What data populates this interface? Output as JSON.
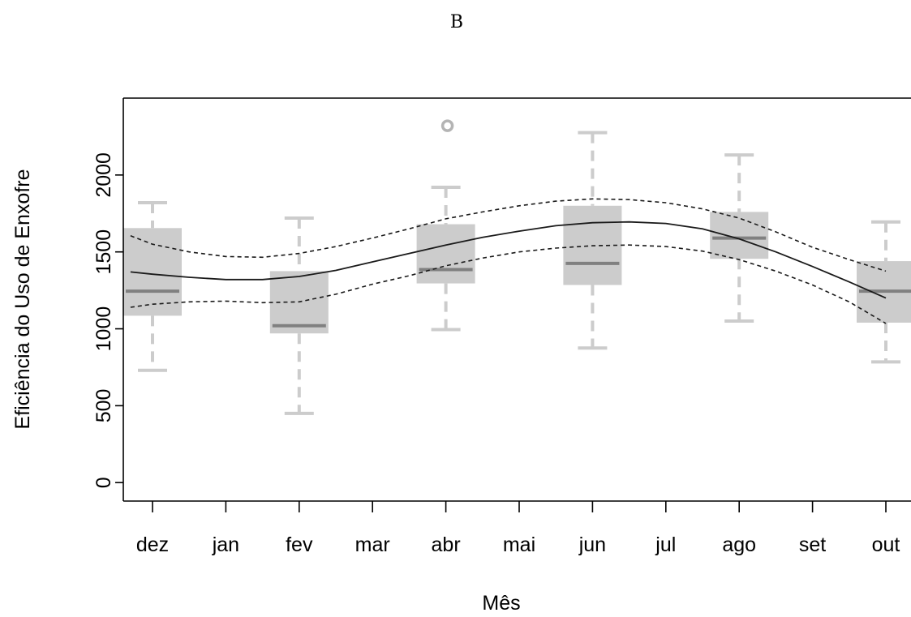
{
  "panel_label": "B",
  "chart_data": {
    "type": "boxplot",
    "xlabel": "Mês",
    "ylabel": "Eficiência do Uso de Enxofre",
    "ylim": [
      -120,
      2500
    ],
    "yticks": [
      0,
      500,
      1000,
      1500,
      2000
    ],
    "x_ticks": [
      "dez",
      "jan",
      "fev",
      "mar",
      "abr",
      "mai",
      "jun",
      "jul",
      "ago",
      "set",
      "out"
    ],
    "grid": false,
    "legend": "none",
    "boxes": [
      {
        "month": "dez",
        "whisker_low": 730,
        "q1": 1085,
        "median": 1245,
        "q3": 1655,
        "whisker_high": 1820,
        "outliers": []
      },
      {
        "month": "fev",
        "whisker_low": 450,
        "q1": 970,
        "median": 1020,
        "q3": 1375,
        "whisker_high": 1720,
        "outliers": []
      },
      {
        "month": "abr",
        "whisker_low": 995,
        "q1": 1295,
        "median": 1385,
        "q3": 1680,
        "whisker_high": 1920,
        "outliers": [
          2320
        ]
      },
      {
        "month": "jun",
        "whisker_low": 875,
        "q1": 1285,
        "median": 1425,
        "q3": 1800,
        "whisker_high": 2275,
        "outliers": []
      },
      {
        "month": "ago",
        "whisker_low": 1050,
        "q1": 1455,
        "median": 1590,
        "q3": 1760,
        "whisker_high": 2130,
        "outliers": []
      },
      {
        "month": "out",
        "whisker_low": 785,
        "q1": 1040,
        "median": 1245,
        "q3": 1440,
        "whisker_high": 1695,
        "outliers": []
      }
    ],
    "fit_curve": {
      "x": [
        -0.3,
        0.0,
        0.5,
        1.0,
        1.5,
        2.0,
        2.5,
        3.0,
        3.5,
        4.0,
        4.5,
        5.0,
        5.5,
        6.0,
        6.5,
        7.0,
        7.5,
        8.0,
        8.5,
        9.0,
        9.5,
        10.0
      ],
      "fit": [
        1370,
        1355,
        1335,
        1320,
        1320,
        1340,
        1380,
        1435,
        1490,
        1545,
        1595,
        1635,
        1670,
        1690,
        1695,
        1685,
        1650,
        1585,
        1500,
        1405,
        1305,
        1200
      ],
      "upper": [
        1605,
        1550,
        1500,
        1470,
        1465,
        1490,
        1535,
        1590,
        1650,
        1715,
        1760,
        1800,
        1830,
        1845,
        1840,
        1820,
        1780,
        1720,
        1630,
        1530,
        1450,
        1375
      ],
      "lower": [
        1140,
        1160,
        1175,
        1180,
        1170,
        1175,
        1225,
        1290,
        1345,
        1410,
        1460,
        1500,
        1525,
        1540,
        1545,
        1535,
        1505,
        1450,
        1375,
        1285,
        1175,
        1035
      ]
    },
    "colors": {
      "box_fill": "#cccccc",
      "median": "#808080",
      "whisker": "#cccccc",
      "outlier": "#b4b4b4",
      "fit_line": "#1a1a1a",
      "band_line": "#1a1a1a"
    }
  }
}
